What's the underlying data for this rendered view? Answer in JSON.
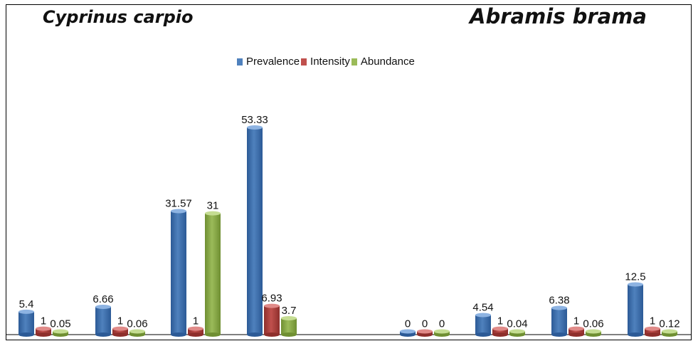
{
  "titles": {
    "left": "Cyprinus carpio",
    "right": "Abramis brama"
  },
  "legend": [
    {
      "name": "Prevalence",
      "color": "#4f81bd"
    },
    {
      "name": "Intensity",
      "color": "#c0504d"
    },
    {
      "name": "Abundance",
      "color": "#9bbb59"
    }
  ],
  "chart_data": {
    "type": "bar",
    "series": [
      {
        "name": "Prevalence",
        "values": [
          5.4,
          6.66,
          31.57,
          53.33,
          0,
          4.54,
          6.38,
          12.5
        ]
      },
      {
        "name": "Intensity",
        "values": [
          1,
          1,
          1,
          6.93,
          0,
          1,
          1,
          1
        ]
      },
      {
        "name": "Abundance",
        "values": [
          0.05,
          0.06,
          31,
          3.7,
          0,
          0.04,
          0.06,
          0.12
        ]
      }
    ],
    "data_labels": [
      [
        "5.4",
        "6.66",
        "31.57",
        "53.33",
        "0",
        "4.54",
        "6.38",
        "12.5"
      ],
      [
        "1",
        "1",
        "1",
        "6.93",
        "0",
        "1",
        "1",
        "1"
      ],
      [
        "0.05",
        "0.06",
        "31",
        "3.7",
        "0",
        "0.04",
        "0.06",
        "0.12"
      ]
    ],
    "groups": [
      {
        "name": "Cyprinus carpio",
        "categories": 4
      },
      {
        "name": "Abramis brama",
        "categories": 4
      }
    ],
    "ylim": [
      0,
      60
    ],
    "grid": false,
    "legend_position": "top-center"
  }
}
